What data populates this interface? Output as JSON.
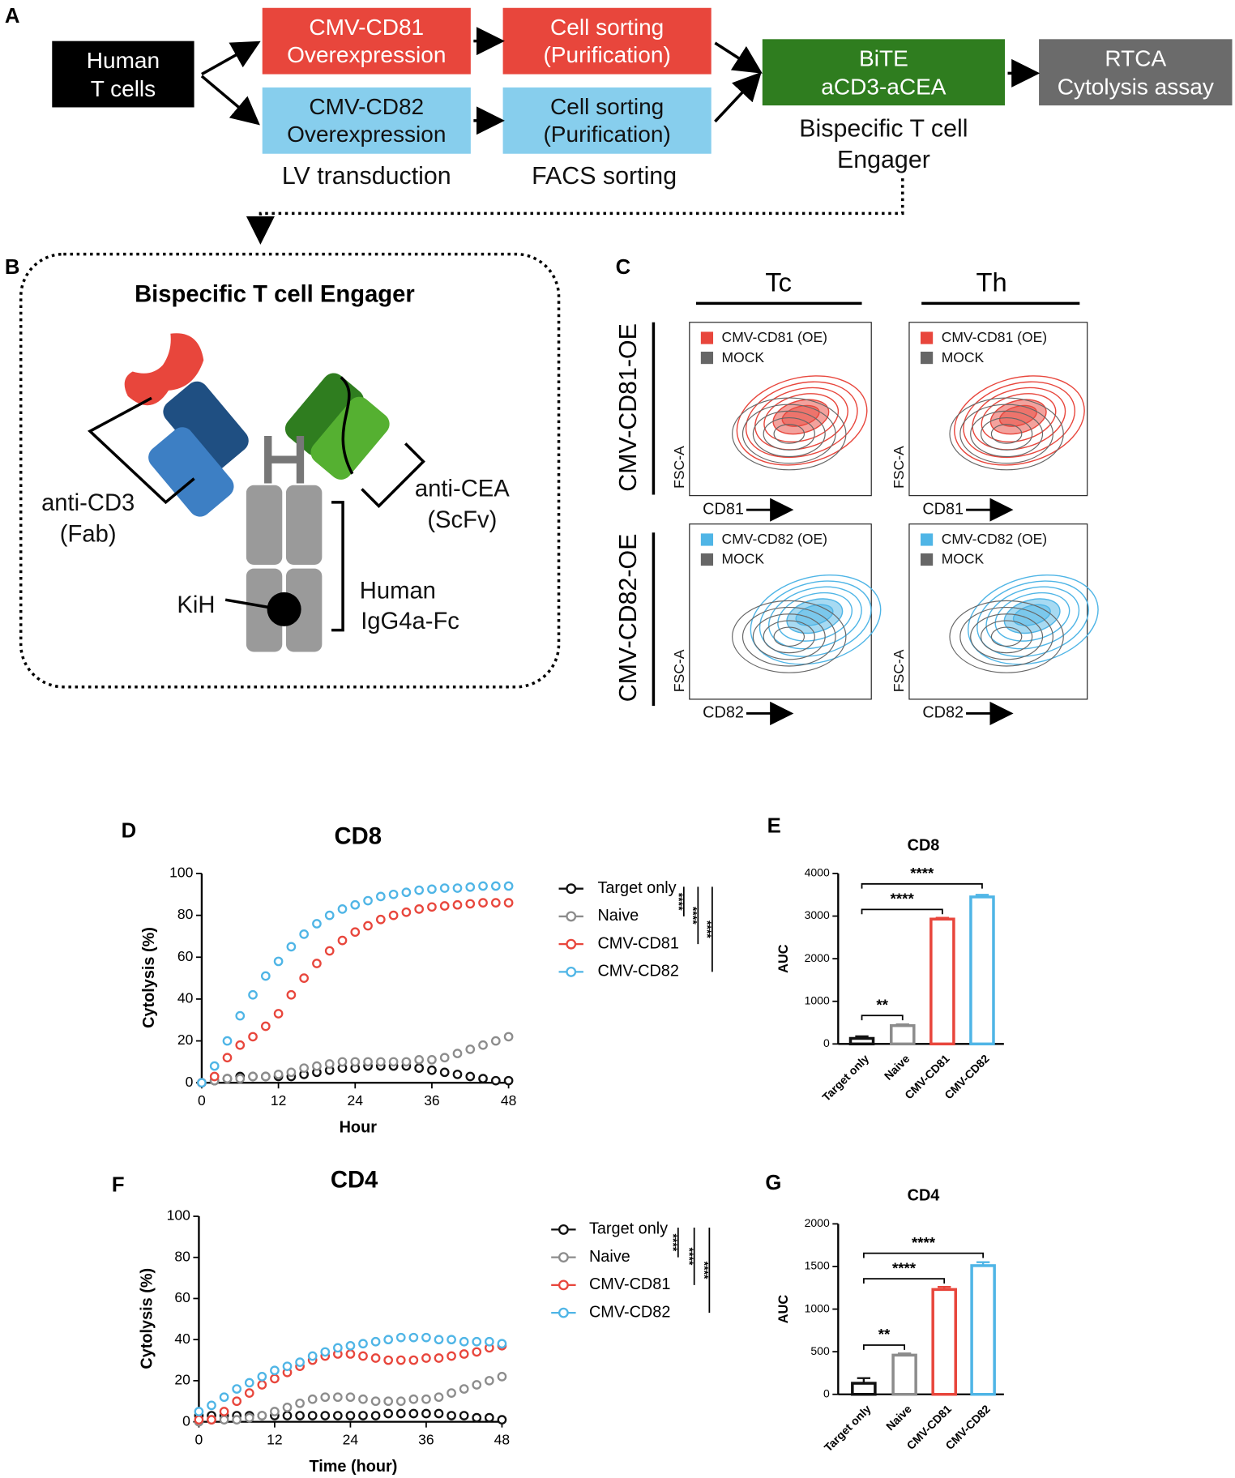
{
  "panel_a": {
    "label": "A",
    "human": [
      "Human",
      "T cells"
    ],
    "cd81_oe": [
      "CMV-CD81",
      "Overexpression"
    ],
    "cd82_oe": [
      "CMV-CD82",
      "Overexpression"
    ],
    "sort_1": [
      "Cell sorting",
      "(Purification)"
    ],
    "sort_2": [
      "Cell sorting",
      "(Purification)"
    ],
    "bite": [
      "BiTE",
      "aCD3-aCEA"
    ],
    "rtca": [
      "RTCA",
      "Cytolysis assay"
    ],
    "lv_caption": "LV transduction",
    "facs_caption": "FACS sorting",
    "bite_caption": [
      "Bispecific T cell",
      "Engager"
    ]
  },
  "panel_b": {
    "label": "B",
    "title": "Bispecific T cell Engager",
    "anti_cd3": [
      "anti-CD3",
      "(Fab)"
    ],
    "anti_cea": [
      "anti-CEA",
      "(ScFv)"
    ],
    "kih": "KiH",
    "fc": [
      "Human",
      "IgG4a-Fc"
    ]
  },
  "panel_c": {
    "label": "C",
    "columns": [
      "Tc",
      "Th"
    ],
    "rows": [
      "CMV-CD81-OE",
      "CMV-CD82-OE"
    ],
    "plots": [
      {
        "legend": [
          "CMV-CD81 (OE)",
          "MOCK"
        ],
        "x_label": "CD81",
        "y_label": "FSC-A"
      },
      {
        "legend": [
          "CMV-CD81 (OE)",
          "MOCK"
        ],
        "x_label": "CD81",
        "y_label": "FSC-A"
      },
      {
        "legend": [
          "CMV-CD82 (OE)",
          "MOCK"
        ],
        "x_label": "CD82",
        "y_label": "FSC-A"
      },
      {
        "legend": [
          "CMV-CD82 (OE)",
          "MOCK"
        ],
        "x_label": "CD82",
        "y_label": "FSC-A"
      }
    ]
  },
  "chart_data": [
    {
      "panel": "D",
      "type": "line",
      "title": "CD8",
      "x_label": "Hour",
      "y_label": "Cytolysis (%)",
      "x": [
        0,
        2,
        4,
        6,
        8,
        10,
        12,
        14,
        16,
        18,
        20,
        22,
        24,
        26,
        28,
        30,
        32,
        34,
        36,
        38,
        40,
        42,
        44,
        46,
        48
      ],
      "xlim": [
        0,
        48
      ],
      "xticks": [
        0,
        12,
        24,
        36,
        48
      ],
      "ylim": [
        0,
        100
      ],
      "yticks": [
        0,
        20,
        40,
        60,
        80,
        100
      ],
      "series": [
        {
          "name": "Target only",
          "color": "#111111",
          "values": [
            0,
            1,
            2,
            3,
            3,
            3,
            3,
            3,
            4,
            5,
            6,
            7,
            7,
            8,
            8,
            8,
            8,
            7,
            6,
            5,
            4,
            3,
            2,
            1,
            1
          ]
        },
        {
          "name": "Naive",
          "color": "#8c8c8c",
          "values": [
            0,
            1,
            2,
            2,
            3,
            3,
            4,
            5,
            7,
            8,
            9,
            10,
            10,
            10,
            10,
            10,
            10,
            11,
            11,
            12,
            14,
            16,
            18,
            20,
            22
          ]
        },
        {
          "name": "CMV-CD81",
          "color": "#e8463c",
          "values": [
            0,
            3,
            12,
            18,
            22,
            27,
            33,
            42,
            50,
            57,
            63,
            68,
            72,
            75,
            78,
            80,
            81.5,
            83,
            84,
            84.5,
            85,
            85.5,
            86,
            86,
            86
          ]
        },
        {
          "name": "CMV-CD82",
          "color": "#4fb5e6",
          "values": [
            0,
            8,
            20,
            32,
            42,
            51,
            58,
            65,
            71,
            76,
            80,
            83,
            85,
            87,
            89,
            90,
            91,
            92,
            92.5,
            93,
            93,
            93.5,
            94,
            94,
            94
          ]
        }
      ],
      "annotations": [
        "****",
        "****",
        "****"
      ]
    },
    {
      "panel": "E",
      "type": "bar",
      "title": "CD8",
      "y_label": "AUC",
      "categories": [
        "Target only",
        "Naive",
        "CMV-CD81",
        "CMV-CD82"
      ],
      "values": [
        130,
        430,
        2930,
        3450
      ],
      "errors": [
        50,
        30,
        30,
        50
      ],
      "colors": [
        "#111111",
        "#8c8c8c",
        "#e8463c",
        "#4fb5e6"
      ],
      "ylim": [
        0,
        4000
      ],
      "yticks": [
        0,
        1000,
        2000,
        3000,
        4000
      ],
      "annotations": [
        "**",
        "****",
        "****"
      ]
    },
    {
      "panel": "F",
      "type": "line",
      "title": "CD4",
      "x_label": "Time (hour)",
      "y_label": "Cytolysis (%)",
      "x": [
        0,
        2,
        4,
        6,
        8,
        10,
        12,
        14,
        16,
        18,
        20,
        22,
        24,
        26,
        28,
        30,
        32,
        34,
        36,
        38,
        40,
        42,
        44,
        46,
        48
      ],
      "xlim": [
        0,
        48
      ],
      "xticks": [
        0,
        12,
        24,
        36,
        48
      ],
      "ylim": [
        0,
        100
      ],
      "yticks": [
        0,
        20,
        40,
        60,
        80,
        100
      ],
      "series": [
        {
          "name": "Target only",
          "color": "#111111",
          "values": [
            3,
            3,
            3,
            3,
            3,
            3,
            3,
            3,
            3,
            3,
            3,
            3,
            3,
            3,
            3,
            4,
            4,
            4,
            4,
            4,
            3,
            3,
            2,
            2,
            1
          ]
        },
        {
          "name": "Naive",
          "color": "#8c8c8c",
          "values": [
            0,
            1,
            1,
            1,
            2,
            3,
            5,
            7,
            9,
            11,
            12,
            12,
            12,
            11,
            10,
            10,
            10,
            11,
            11,
            12,
            14,
            16,
            18,
            20,
            22
          ]
        },
        {
          "name": "CMV-CD81",
          "color": "#e8463c",
          "values": [
            1,
            1,
            5,
            10,
            14,
            18,
            21,
            24,
            27,
            30,
            32,
            33,
            33,
            32,
            31,
            30,
            30,
            30,
            31,
            31,
            32,
            33,
            34,
            36,
            37
          ]
        },
        {
          "name": "CMV-CD82",
          "color": "#4fb5e6",
          "values": [
            5,
            8,
            12,
            16,
            19,
            22,
            25,
            27,
            29,
            32,
            34,
            36,
            37,
            38,
            39,
            40,
            41,
            41,
            41,
            40,
            40,
            39,
            39,
            39,
            38
          ]
        }
      ],
      "annotations": [
        "****",
        "****",
        "****"
      ]
    },
    {
      "panel": "G",
      "type": "bar",
      "title": "CD4",
      "y_label": "AUC",
      "categories": [
        "Target only",
        "Naive",
        "CMV-CD81",
        "CMV-CD82"
      ],
      "values": [
        130,
        460,
        1230,
        1510
      ],
      "errors": [
        60,
        20,
        30,
        40
      ],
      "colors": [
        "#111111",
        "#8c8c8c",
        "#e8463c",
        "#4fb5e6"
      ],
      "ylim": [
        0,
        2000
      ],
      "yticks": [
        0,
        500,
        1000,
        1500,
        2000
      ],
      "annotations": [
        "**",
        "****",
        "****"
      ]
    }
  ]
}
